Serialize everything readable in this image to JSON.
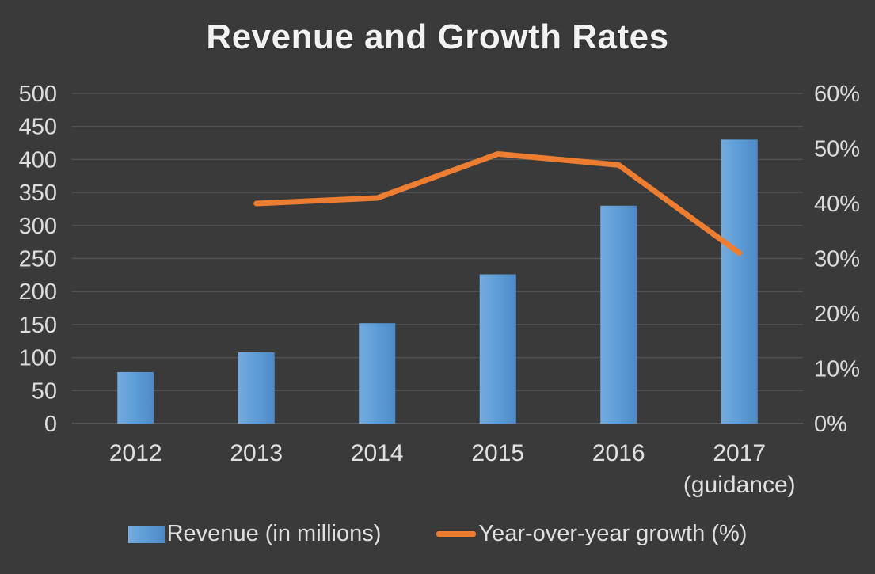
{
  "chart_data": {
    "type": "combo",
    "title": "Revenue and Growth Rates",
    "categories": [
      "2012",
      "2013",
      "2014",
      "2015",
      "2016",
      "2017\n(guidance)"
    ],
    "series": [
      {
        "name": "Revenue (in millions)",
        "type": "bar",
        "axis": "left",
        "values": [
          78,
          108,
          152,
          226,
          330,
          430
        ]
      },
      {
        "name": "Year-over-year growth (%)",
        "type": "line",
        "axis": "right",
        "values": [
          null,
          40,
          41,
          49,
          47,
          31
        ]
      }
    ],
    "left_axis": {
      "min": 0,
      "max": 500,
      "step": 50,
      "tick_labels": [
        "0",
        "50",
        "100",
        "150",
        "200",
        "250",
        "300",
        "350",
        "400",
        "450",
        "500"
      ]
    },
    "right_axis": {
      "min": 0,
      "max": 60,
      "step": 10,
      "tick_labels": [
        "0%",
        "10%",
        "20%",
        "30%",
        "40%",
        "50%",
        "60%"
      ]
    },
    "grid": true,
    "legend_position": "bottom"
  },
  "colors": {
    "background": "#3a3a3a",
    "text": "#e0e0e0",
    "title_text": "#f2f2f2",
    "gridline": "#525252",
    "zero_line": "#616161",
    "bar_light": "#74abdf",
    "bar": "#5b9bd5",
    "bar_dark": "#4e89c6",
    "line": "#ed7d31"
  }
}
